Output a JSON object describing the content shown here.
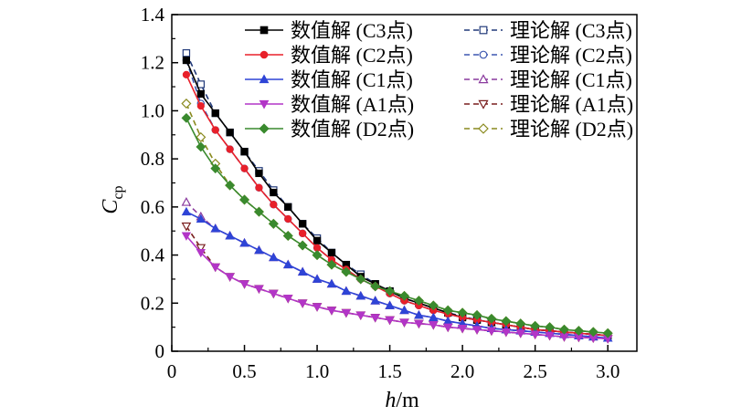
{
  "chart_data": {
    "type": "line",
    "xlabel_main": "h",
    "xlabel_unit": "/m",
    "ylabel_main": "C",
    "ylabel_sub": "cp",
    "xlim": [
      0,
      3.2
    ],
    "ylim": [
      0,
      1.4
    ],
    "xticks": [
      "0",
      "0.5",
      "1.0",
      "1.5",
      "2.0",
      "2.5",
      "3.0"
    ],
    "yticks": [
      "0",
      "0.2",
      "0.4",
      "0.6",
      "0.8",
      "1.0",
      "1.2",
      "1.4"
    ],
    "grid": false,
    "legend_position": "top-right",
    "x": [
      0.1,
      0.2,
      0.3,
      0.4,
      0.5,
      0.6,
      0.7,
      0.8,
      0.9,
      1.0,
      1.1,
      1.2,
      1.3,
      1.4,
      1.5,
      1.6,
      1.7,
      1.8,
      1.9,
      2.0,
      2.1,
      2.2,
      2.3,
      2.4,
      2.5,
      2.6,
      2.7,
      2.8,
      2.9,
      3.0
    ],
    "series": [
      {
        "name": "数值解 (C3点)",
        "kind": "numerical",
        "color": "#000000",
        "marker": "square",
        "filled": true,
        "values": [
          1.21,
          1.07,
          0.99,
          0.91,
          0.83,
          0.74,
          0.66,
          0.6,
          0.53,
          0.46,
          0.41,
          0.36,
          0.31,
          0.28,
          0.25,
          0.22,
          0.2,
          0.18,
          0.16,
          0.14,
          0.13,
          0.12,
          0.11,
          0.1,
          0.09,
          0.085,
          0.08,
          0.075,
          0.07,
          0.065
        ]
      },
      {
        "name": "数值解 (C2点)",
        "kind": "numerical",
        "color": "#e8202a",
        "marker": "circle",
        "filled": true,
        "values": [
          1.15,
          1.02,
          0.92,
          0.84,
          0.76,
          0.68,
          0.61,
          0.55,
          0.49,
          0.43,
          0.38,
          0.34,
          0.3,
          0.27,
          0.24,
          0.21,
          0.19,
          0.17,
          0.155,
          0.14,
          0.13,
          0.12,
          0.11,
          0.1,
          0.09,
          0.085,
          0.08,
          0.075,
          0.07,
          0.065
        ]
      },
      {
        "name": "数值解 (C1点)",
        "kind": "numerical",
        "color": "#2e44d6",
        "marker": "triangle-up",
        "filled": true,
        "values": [
          0.58,
          0.55,
          0.51,
          0.48,
          0.45,
          0.42,
          0.39,
          0.36,
          0.33,
          0.3,
          0.28,
          0.25,
          0.23,
          0.21,
          0.19,
          0.17,
          0.15,
          0.14,
          0.125,
          0.115,
          0.105,
          0.095,
          0.09,
          0.085,
          0.08,
          0.075,
          0.07,
          0.065,
          0.06,
          0.055
        ]
      },
      {
        "name": "数值解 (A1点)",
        "kind": "numerical",
        "color": "#b235c7",
        "marker": "triangle-down",
        "filled": true,
        "values": [
          0.48,
          0.41,
          0.35,
          0.31,
          0.28,
          0.26,
          0.24,
          0.22,
          0.2,
          0.185,
          0.17,
          0.16,
          0.15,
          0.14,
          0.13,
          0.12,
          0.115,
          0.11,
          0.1,
          0.095,
          0.09,
          0.085,
          0.08,
          0.075,
          0.07,
          0.065,
          0.06,
          0.058,
          0.055,
          0.052
        ]
      },
      {
        "name": "数值解 (D2点)",
        "kind": "numerical",
        "color": "#3a8a2e",
        "marker": "diamond",
        "filled": true,
        "values": [
          0.97,
          0.85,
          0.76,
          0.69,
          0.63,
          0.58,
          0.53,
          0.48,
          0.44,
          0.4,
          0.36,
          0.33,
          0.3,
          0.27,
          0.25,
          0.23,
          0.21,
          0.19,
          0.17,
          0.16,
          0.15,
          0.135,
          0.125,
          0.115,
          0.105,
          0.1,
          0.09,
          0.085,
          0.08,
          0.075
        ]
      },
      {
        "name": "理论解 (C3点)",
        "kind": "theoretical",
        "color": "#223a7a",
        "marker": "square",
        "filled": false,
        "values": [
          1.24,
          1.11,
          0.99,
          0.91,
          0.83,
          0.75,
          0.67,
          0.6,
          0.53,
          0.47,
          0.41,
          0.36,
          0.32,
          0.28,
          0.25,
          0.22,
          0.2,
          0.18,
          0.16,
          0.145,
          0.13,
          0.12,
          0.11,
          0.1,
          0.09,
          0.085,
          0.08,
          0.075,
          0.07,
          0.065
        ]
      },
      {
        "name": "理论解 (C2点)",
        "kind": "theoretical",
        "color": "#3d57b0",
        "marker": "circle",
        "filled": false,
        "values": [
          1.21,
          1.03,
          0.92,
          0.84,
          0.76,
          0.68,
          0.61,
          0.55,
          0.49,
          0.43,
          0.38,
          0.34,
          0.3,
          0.27,
          0.24,
          0.21,
          0.19,
          0.17,
          0.155,
          0.14,
          0.13,
          0.12,
          0.11,
          0.1,
          0.09,
          0.085,
          0.08,
          0.075,
          0.07,
          0.065
        ]
      },
      {
        "name": "理论解 (C1点)",
        "kind": "theoretical",
        "color": "#8a3a9e",
        "marker": "triangle-up",
        "filled": false,
        "values": [
          0.62,
          0.56,
          0.51,
          0.48,
          0.45,
          0.42,
          0.39,
          0.36,
          0.33,
          0.3,
          0.28,
          0.25,
          0.23,
          0.21,
          0.19,
          0.17,
          0.15,
          0.14,
          0.125,
          0.115,
          0.105,
          0.095,
          0.09,
          0.085,
          0.08,
          0.075,
          0.07,
          0.065,
          0.06,
          0.055
        ]
      },
      {
        "name": "理论解 (A1点)",
        "kind": "theoretical",
        "color": "#7a1f1f",
        "marker": "triangle-down",
        "filled": false,
        "values": [
          0.52,
          0.43,
          0.35,
          0.31,
          0.28,
          0.26,
          0.24,
          0.22,
          0.2,
          0.185,
          0.17,
          0.16,
          0.15,
          0.14,
          0.13,
          0.12,
          0.115,
          0.11,
          0.1,
          0.095,
          0.09,
          0.085,
          0.08,
          0.075,
          0.07,
          0.065,
          0.06,
          0.058,
          0.055,
          0.052
        ]
      },
      {
        "name": "理论解 (D2点)",
        "kind": "theoretical",
        "color": "#8a8a1e",
        "marker": "diamond",
        "filled": false,
        "values": [
          1.03,
          0.89,
          0.78,
          0.69,
          0.63,
          0.58,
          0.53,
          0.48,
          0.44,
          0.4,
          0.36,
          0.33,
          0.3,
          0.27,
          0.25,
          0.23,
          0.21,
          0.19,
          0.17,
          0.16,
          0.15,
          0.135,
          0.125,
          0.115,
          0.105,
          0.1,
          0.09,
          0.085,
          0.08,
          0.075
        ]
      }
    ]
  }
}
